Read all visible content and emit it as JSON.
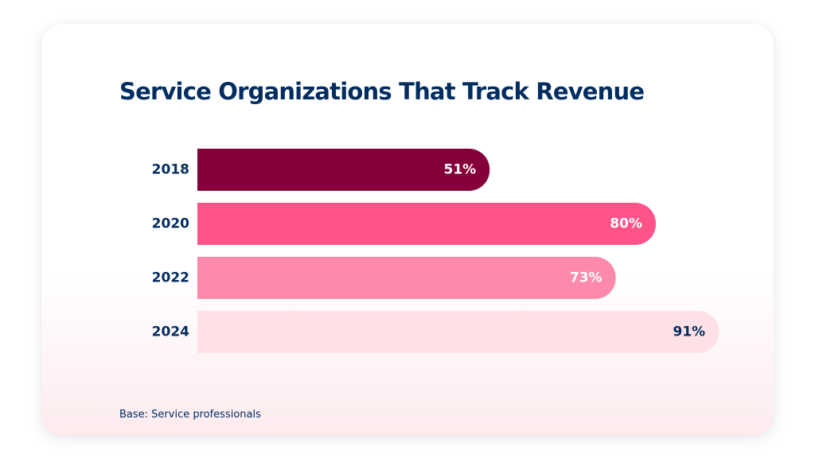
{
  "chart_data": {
    "type": "bar",
    "orientation": "horizontal",
    "title": "Service Organizations That Track Revenue",
    "categories": [
      "2018",
      "2020",
      "2022",
      "2024"
    ],
    "values": [
      51,
      80,
      73,
      91
    ],
    "value_labels": [
      "51%",
      "80%",
      "73%",
      "91%"
    ],
    "bar_colors": [
      "#85003a",
      "#ff538a",
      "#fe8aab",
      "#fde1e6"
    ],
    "label_colors": [
      "#ffffff",
      "#ffffff",
      "#ffffff",
      "#032d60"
    ],
    "xlim": [
      0,
      100
    ],
    "grid": false,
    "legend": "none",
    "footnote": "Base: Service professionals"
  }
}
